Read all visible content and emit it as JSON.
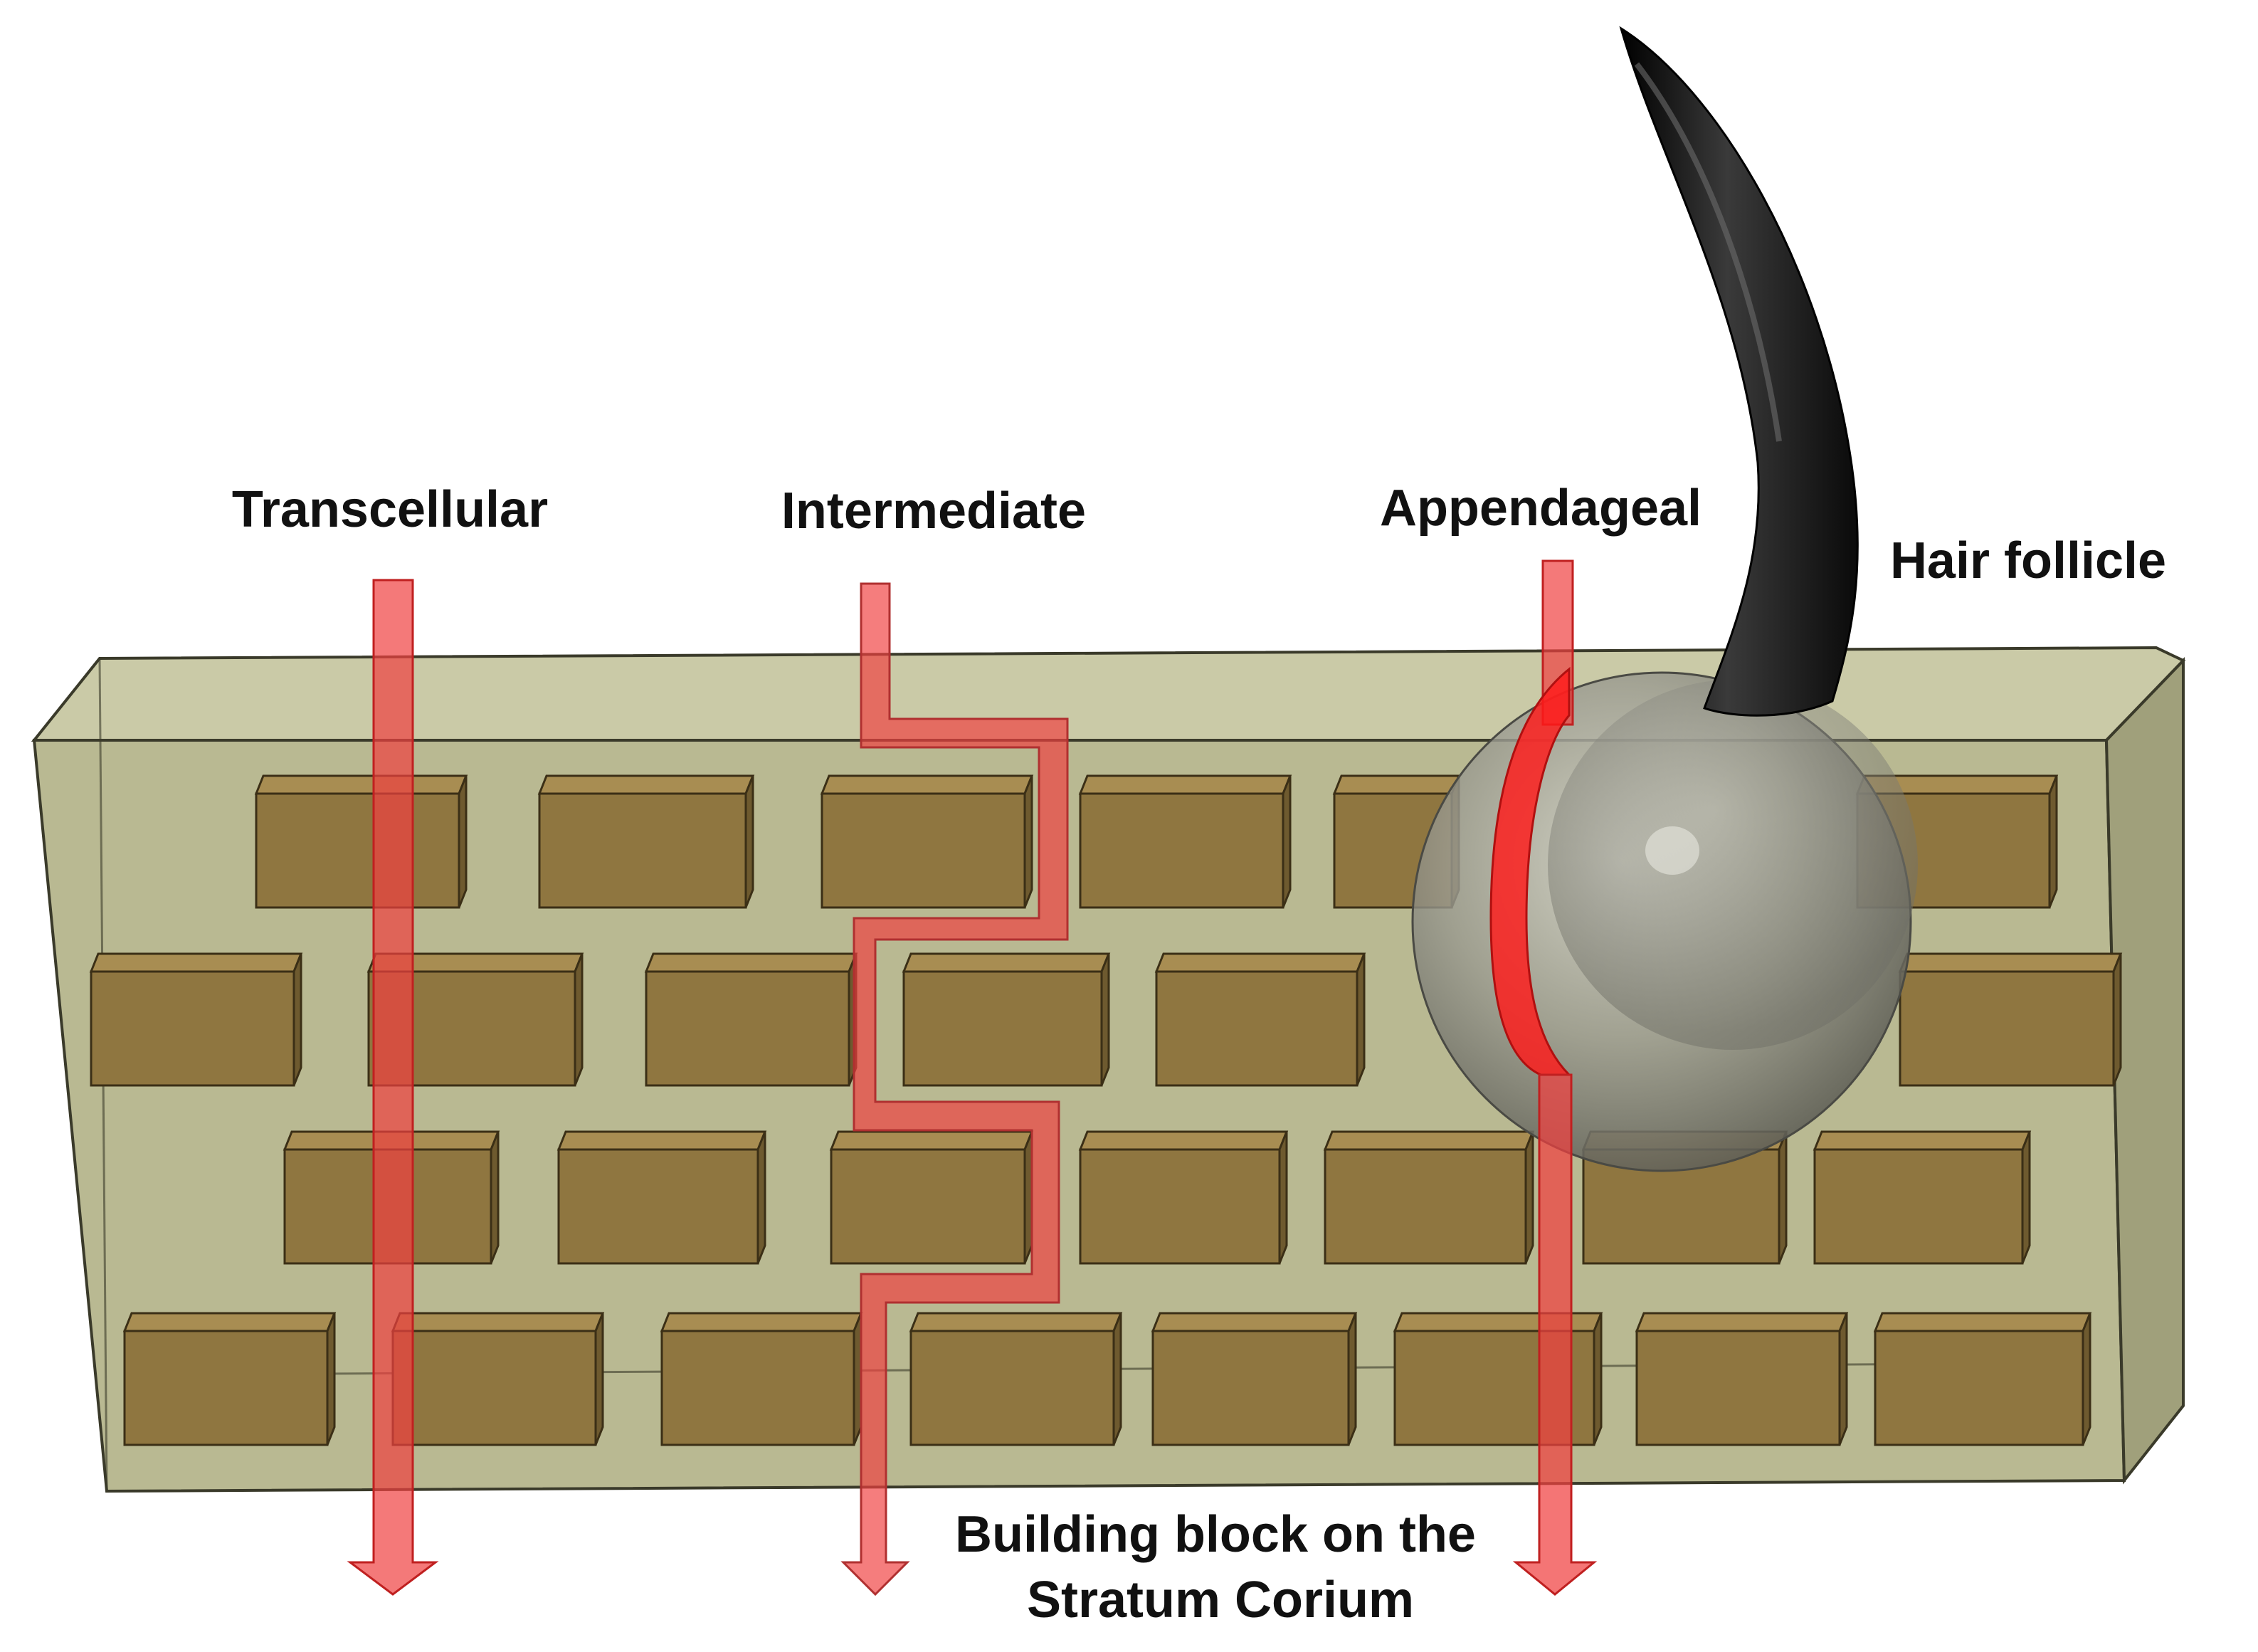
{
  "labels": {
    "transcellular": "Transcellular",
    "intermediate": "Intermediate",
    "appendageal": "Appendageal",
    "hair_follicle": "Hair follicle",
    "caption_line1": "Building block on the",
    "caption_line2": "Stratum Corium"
  },
  "colors": {
    "matrix": "#a9a97a",
    "matrix_edge": "#3a3a2a",
    "brick_front": "#8f7640",
    "brick_top": "#a88d52",
    "brick_side": "#6e5a2f",
    "arrow": "#f04040",
    "arrow_bright": "#ff1010",
    "hair": "#141414",
    "sphere": "#8a8a80"
  }
}
